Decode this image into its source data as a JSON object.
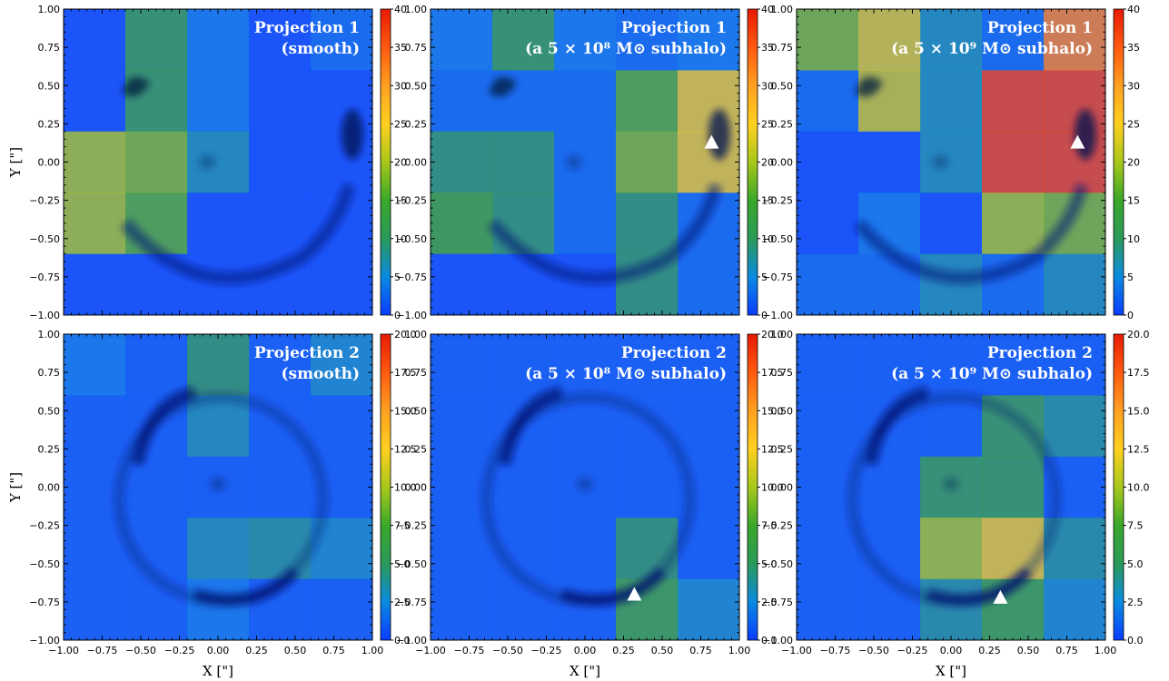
{
  "chart_data": {
    "type": "heatmap",
    "xlabel": "X [\"]",
    "ylabel": "Y [\"]",
    "xlim": [
      -1.0,
      1.0
    ],
    "ylim": [
      -1.0,
      1.0
    ],
    "x_ticks": [
      "−1.00",
      "−0.75",
      "−0.50",
      "−0.25",
      "0.00",
      "0.25",
      "0.50",
      "0.75",
      "1.00"
    ],
    "y_ticks": [
      "1.00",
      "0.75",
      "0.50",
      "0.25",
      "0.00",
      "−0.25",
      "−0.50",
      "−0.75",
      "−1.00"
    ],
    "grid_size": 5,
    "colormap": [
      "#0a3cff",
      "#0a8be0",
      "#2a9a5a",
      "#3aa82a",
      "#a8c81a",
      "#ffd020",
      "#ffa020",
      "#ff5a10",
      "#e81a05"
    ],
    "rows": [
      {
        "colorbar_max": 40,
        "colorbar_ticks": [
          "40",
          "35",
          "30",
          "25",
          "20",
          "15",
          "10",
          "5",
          "0"
        ],
        "panels": [
          {
            "title_line1": "Projection 1",
            "title_line2": "(smooth)",
            "grid": [
              [
                1,
                12,
                4,
                1,
                3
              ],
              [
                1,
                12,
                4,
                1,
                1
              ],
              [
                20,
                18,
                7,
                1,
                1
              ],
              [
                20,
                16,
                1,
                1,
                1
              ],
              [
                1,
                1,
                1,
                1,
                1
              ]
            ],
            "ring": "p1",
            "subhalo": null
          },
          {
            "title_line1": "Projection 1",
            "title_line2": "(a 5 × 10⁸ M⊙ subhalo)",
            "grid": [
              [
                4,
                12,
                4,
                3,
                4
              ],
              [
                3,
                3,
                3,
                16,
                24
              ],
              [
                10,
                10,
                3,
                18,
                24
              ],
              [
                15,
                10,
                3,
                10,
                3
              ],
              [
                1,
                1,
                1,
                10,
                3
              ]
            ],
            "ring": "p1",
            "subhalo": {
              "x": 0.82,
              "y": 0.13
            }
          },
          {
            "title_line1": "Projection 1",
            "title_line2": "(a 5 × 10⁹ M⊙ subhalo)",
            "grid": [
              [
                18,
                23,
                7,
                3,
                32
              ],
              [
                3,
                22,
                7,
                37,
                37
              ],
              [
                1,
                1,
                7,
                37,
                37
              ],
              [
                1,
                4,
                1,
                20,
                18
              ],
              [
                3,
                3,
                7,
                3,
                7
              ]
            ],
            "ring": "p1",
            "subhalo": {
              "x": 0.82,
              "y": 0.13
            }
          }
        ]
      },
      {
        "colorbar_max": 20,
        "colorbar_ticks": [
          "20.0",
          "17.5",
          "15.0",
          "12.5",
          "10.0",
          "7.5",
          "5.0",
          "2.5",
          "0.0"
        ],
        "panels": [
          {
            "title_line1": "Projection 2",
            "title_line2": "(smooth)",
            "grid": [
              [
                2,
                1,
                5,
                1,
                3
              ],
              [
                1,
                1,
                3.5,
                1,
                1
              ],
              [
                1,
                1,
                1,
                1,
                1
              ],
              [
                1,
                1,
                3.5,
                4,
                3
              ],
              [
                1,
                1,
                2,
                1,
                1
              ]
            ],
            "ring": "p2",
            "subhalo": null
          },
          {
            "title_line1": "Projection 2",
            "title_line2": "(a 5 × 10⁸ M⊙ subhalo)",
            "grid": [
              [
                1,
                1,
                1,
                1,
                1
              ],
              [
                1,
                1,
                1,
                1,
                1
              ],
              [
                1,
                1,
                1,
                1,
                1
              ],
              [
                1,
                1,
                1,
                5,
                1
              ],
              [
                1,
                1,
                1,
                7,
                3
              ]
            ],
            "ring": "p2",
            "subhalo": {
              "x": 0.32,
              "y": -0.7
            }
          },
          {
            "title_line1": "Projection 2",
            "title_line2": "(a 5 × 10⁹ M⊙ subhalo)",
            "grid": [
              [
                1,
                1,
                1,
                1,
                1
              ],
              [
                1,
                1,
                1,
                6,
                4
              ],
              [
                1,
                1,
                6,
                6,
                1
              ],
              [
                1,
                1,
                10,
                12,
                4
              ],
              [
                1,
                1,
                4,
                7,
                3
              ]
            ],
            "ring": "p2",
            "subhalo": {
              "x": 0.32,
              "y": -0.72
            }
          }
        ]
      }
    ]
  }
}
